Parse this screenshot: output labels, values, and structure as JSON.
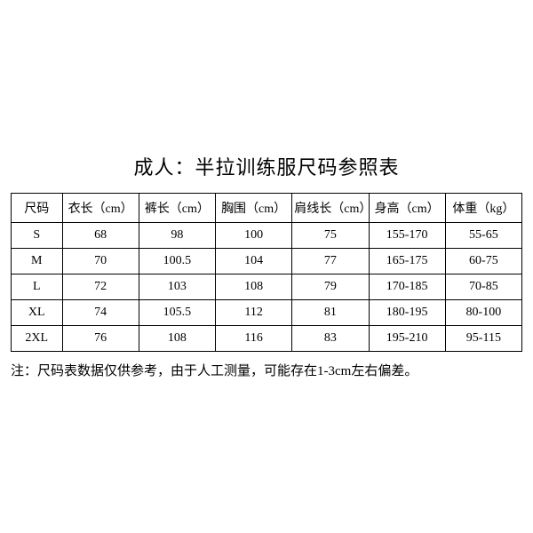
{
  "title": "成人：半拉训练服尺码参照表",
  "table": {
    "columns": [
      "尺码",
      "衣长（cm）",
      "裤长（cm）",
      "胸围（cm）",
      "肩线长（cm）",
      "身高（cm）",
      "体重（kg）"
    ],
    "rows": [
      [
        "S",
        "68",
        "98",
        "100",
        "75",
        "155-170",
        "55-65"
      ],
      [
        "M",
        "70",
        "100.5",
        "104",
        "77",
        "165-175",
        "60-75"
      ],
      [
        "L",
        "72",
        "103",
        "108",
        "79",
        "170-185",
        "70-85"
      ],
      [
        "XL",
        "74",
        "105.5",
        "112",
        "81",
        "180-195",
        "80-100"
      ],
      [
        "2XL",
        "76",
        "108",
        "116",
        "83",
        "195-210",
        "95-115"
      ]
    ],
    "column_widths": [
      "10%",
      "15%",
      "15%",
      "15%",
      "15%",
      "15%",
      "15%"
    ],
    "border_color": "#000000",
    "header_fontsize": 14,
    "cell_fontsize": 14,
    "text_align": "center"
  },
  "footnote": "注：尺码表数据仅供参考，由于人工测量，可能存在1-3cm左右偏差。",
  "style": {
    "background_color": "#ffffff",
    "text_color": "#000000",
    "title_fontsize": 22,
    "footnote_fontsize": 15,
    "font_family": "SimSun"
  }
}
